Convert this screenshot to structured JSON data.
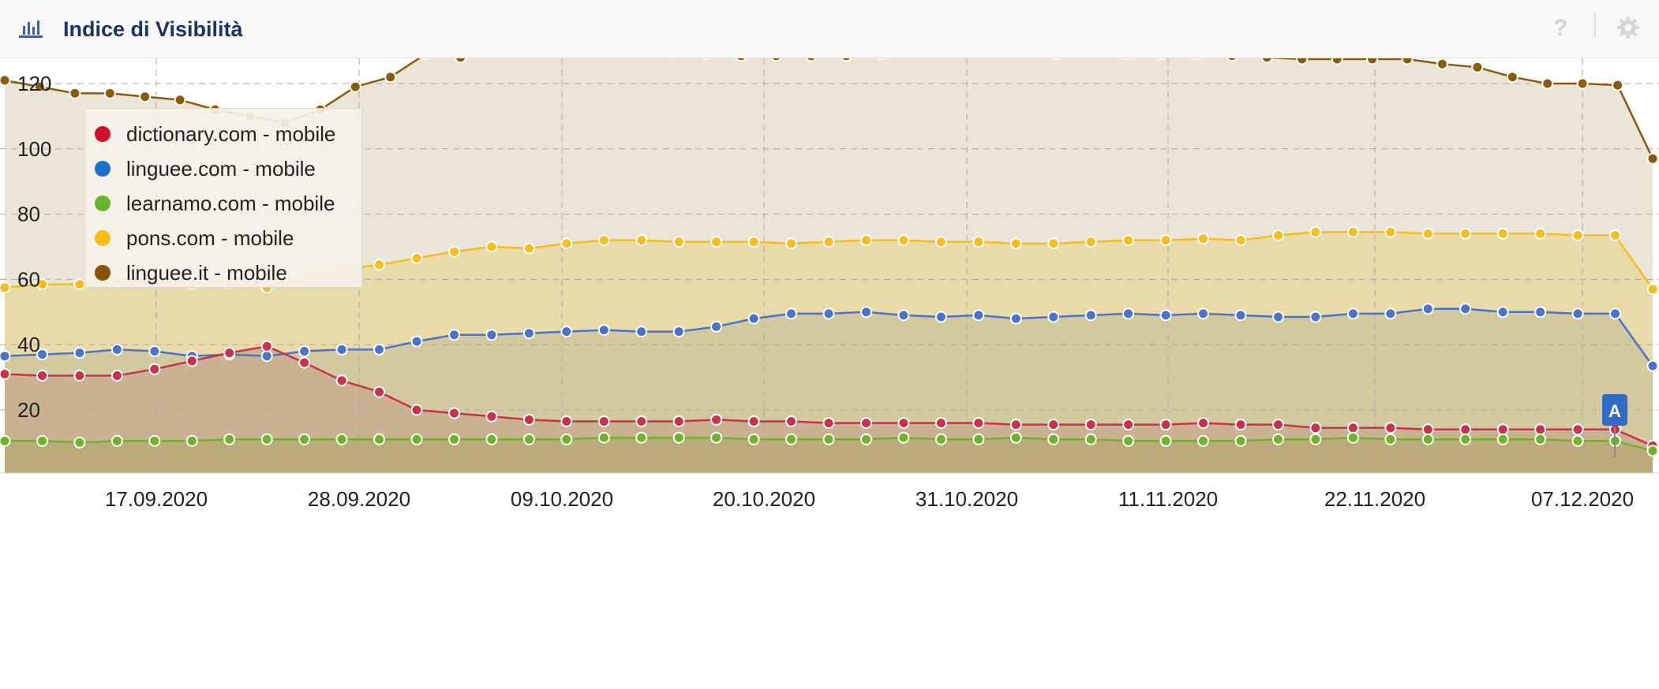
{
  "header": {
    "title": "Indice di Visibilità",
    "help_label": "?"
  },
  "chart_data": {
    "type": "area",
    "title": "Indice di Visibilità",
    "x_tick_labels": [
      "17.09.2020",
      "28.09.2020",
      "09.10.2020",
      "20.10.2020",
      "31.10.2020",
      "11.11.2020",
      "22.11.2020",
      "07.12.2020"
    ],
    "y_tick_labels": [
      "20",
      "40",
      "60",
      "80",
      "100",
      "120"
    ],
    "ylim": [
      0,
      135
    ],
    "grid": true,
    "legend_position": "top-left",
    "marker": "A",
    "series": [
      {
        "name": "linguee.it - mobile",
        "color": "#8b5a0a",
        "fill": "#e8e0d0",
        "values": [
          121,
          119,
          117,
          117,
          116,
          115,
          112,
          110,
          108,
          112,
          119,
          122,
          129,
          128,
          131,
          132,
          133,
          131,
          130,
          129.5,
          129,
          128.5,
          128.5,
          128.5,
          128.5,
          129,
          130.5,
          131,
          132,
          130,
          129,
          130,
          129,
          129,
          129,
          128.5,
          128,
          127.5,
          127.5,
          127.5,
          127.5,
          126,
          125,
          122,
          120,
          120,
          119.5,
          97
        ]
      },
      {
        "name": "pons.com - mobile",
        "color": "#f5bd1f",
        "fill": "#e8d9a1",
        "values": [
          57.5,
          58.5,
          58.5,
          59.5,
          59.5,
          58.5,
          59,
          57.5,
          60.5,
          63,
          64.5,
          66.5,
          68.5,
          70,
          69.5,
          71,
          72,
          72,
          71.5,
          71.5,
          71.5,
          71,
          71.5,
          72,
          72,
          71.5,
          71.5,
          71,
          71,
          71.5,
          72,
          72,
          72.5,
          72,
          73.5,
          74.5,
          74.5,
          74.5,
          74,
          74,
          74,
          74,
          73.5,
          73.5,
          57
        ]
      },
      {
        "name": "linguee.com - mobile",
        "color": "#4a73c9",
        "fill": "#cfc69c",
        "values": [
          36.5,
          37,
          37.5,
          38.5,
          38,
          36.5,
          37,
          36.5,
          38,
          38.5,
          38.5,
          41,
          43,
          43,
          43.5,
          44,
          44.5,
          44,
          44,
          45.5,
          48,
          49.5,
          49.5,
          50,
          49,
          48.5,
          49,
          48,
          48.5,
          49,
          49.5,
          49,
          49.5,
          49,
          48.5,
          48.5,
          49.5,
          49.5,
          51,
          51,
          50,
          50,
          49.5,
          49.5,
          33.5
        ]
      },
      {
        "name": "dictionary.com - mobile",
        "color": "#c9324a",
        "fill": "#c8ad8e",
        "values": [
          31,
          30.5,
          30.5,
          30.5,
          32.5,
          35,
          37.5,
          39.5,
          34.5,
          29,
          25.5,
          20,
          19,
          18,
          17,
          16.5,
          16.5,
          16.5,
          16.5,
          17,
          16.5,
          16.5,
          16,
          16,
          16,
          16,
          16,
          15.5,
          15.5,
          15.5,
          15.5,
          15.5,
          16,
          15.5,
          15.5,
          14.5,
          14.5,
          14.5,
          14,
          14,
          14,
          14,
          14,
          14,
          9
        ]
      },
      {
        "name": "learnamo.com - mobile",
        "color": "#6fb22b",
        "fill": "#b8aa76",
        "values": [
          10.5,
          10.5,
          10,
          10.5,
          10.5,
          10.5,
          11,
          11,
          11,
          11,
          11,
          11,
          11,
          11,
          11,
          11,
          11.5,
          11.5,
          11.5,
          11.5,
          11,
          11,
          11,
          11,
          11.5,
          11,
          11,
          11.5,
          11,
          11,
          10.5,
          10.5,
          10.5,
          10.5,
          11,
          11,
          11.5,
          11,
          11,
          11,
          11,
          11,
          10.5,
          10.5,
          7.5
        ]
      }
    ]
  }
}
